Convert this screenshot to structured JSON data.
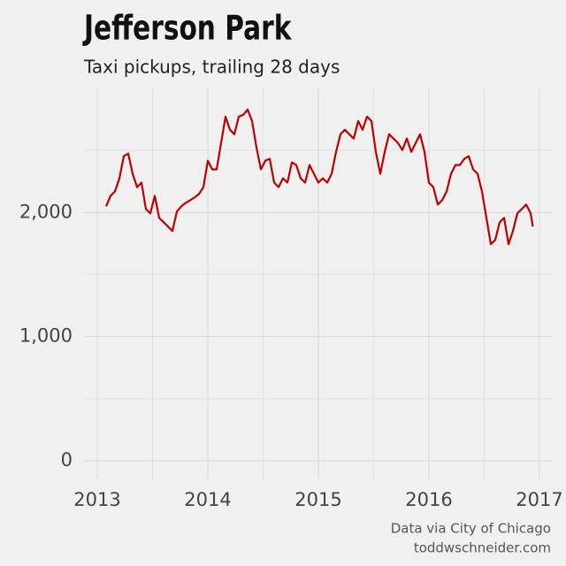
{
  "chart_data": {
    "type": "line",
    "title": "Jefferson Park",
    "subtitle": "Taxi pickups, trailing 28 days",
    "source": "Data via City of Chicago",
    "credit": "toddwschneider.com",
    "color": "#c00000",
    "x": [
      2013.08,
      2013.12,
      2013.16,
      2013.2,
      2013.24,
      2013.28,
      2013.32,
      2013.36,
      2013.4,
      2013.44,
      2013.48,
      2013.52,
      2013.56,
      2013.6,
      2013.64,
      2013.68,
      2013.72,
      2013.76,
      2013.8,
      2013.84,
      2013.88,
      2013.92,
      2013.96,
      2014.0,
      2014.04,
      2014.08,
      2014.12,
      2014.16,
      2014.2,
      2014.24,
      2014.28,
      2014.32,
      2014.36,
      2014.4,
      2014.44,
      2014.48,
      2014.52,
      2014.56,
      2014.6,
      2014.64,
      2014.68,
      2014.72,
      2014.76,
      2014.8,
      2014.84,
      2014.88,
      2014.92,
      2014.96,
      2015.0,
      2015.04,
      2015.08,
      2015.12,
      2015.16,
      2015.2,
      2015.24,
      2015.28,
      2015.32,
      2015.36,
      2015.4,
      2015.44,
      2015.48,
      2015.52,
      2015.56,
      2015.6,
      2015.64,
      2015.68,
      2015.72,
      2015.76,
      2015.8,
      2015.84,
      2015.88,
      2015.92,
      2015.96,
      2016.0,
      2016.04,
      2016.08,
      2016.12,
      2016.16,
      2016.2,
      2016.24,
      2016.28,
      2016.32,
      2016.36,
      2016.4,
      2016.44,
      2016.48,
      2016.52,
      2016.56,
      2016.6,
      2016.64,
      2016.68,
      2016.72,
      2016.76,
      2016.8,
      2016.84,
      2016.88,
      2016.92,
      2016.94
    ],
    "values": [
      2050,
      2135,
      2170,
      2276,
      2454,
      2475,
      2312,
      2205,
      2241,
      2028,
      1993,
      2135,
      1957,
      1922,
      1887,
      1851,
      2007,
      2050,
      2078,
      2099,
      2121,
      2149,
      2205,
      2418,
      2348,
      2348,
      2560,
      2773,
      2667,
      2631,
      2773,
      2787,
      2830,
      2738,
      2525,
      2348,
      2418,
      2433,
      2241,
      2205,
      2276,
      2241,
      2404,
      2383,
      2276,
      2241,
      2383,
      2312,
      2241,
      2276,
      2241,
      2312,
      2489,
      2631,
      2667,
      2631,
      2596,
      2738,
      2667,
      2773,
      2738,
      2489,
      2312,
      2489,
      2631,
      2596,
      2560,
      2504,
      2596,
      2489,
      2560,
      2631,
      2489,
      2241,
      2205,
      2064,
      2099,
      2170,
      2312,
      2383,
      2383,
      2433,
      2454,
      2348,
      2312,
      2170,
      1957,
      1745,
      1780,
      1922,
      1957,
      1745,
      1851,
      1993,
      2028,
      2064,
      1993,
      1887
    ],
    "xlim": [
      2012.88,
      2017.12
    ],
    "ylim": [
      -150,
      3000
    ],
    "xticks": [
      2013,
      2014,
      2015,
      2016,
      2017
    ],
    "yticks": [
      0,
      {
        "value": 1000,
        "label": "1,000"
      },
      {
        "value": 2000,
        "label": "2,000"
      }
    ],
    "minor_xticks": [
      2013.5,
      2014.5,
      2015.5,
      2016.5
    ],
    "minor_yticks": [
      500,
      1500,
      2500
    ],
    "grid": true
  }
}
